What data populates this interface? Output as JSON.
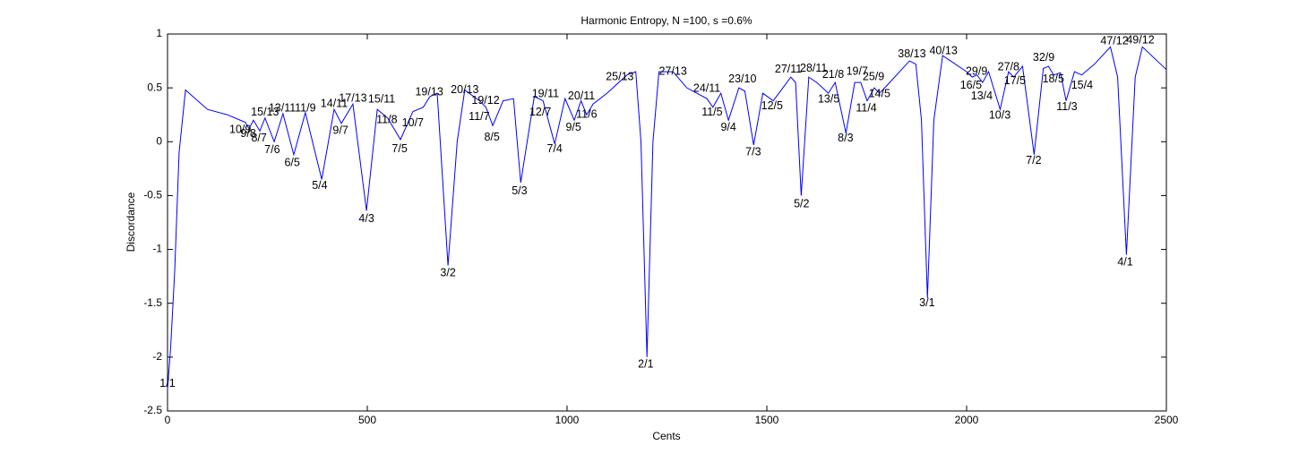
{
  "chart_data": {
    "type": "line",
    "title": "Harmonic Entropy, N =100, s =0.6%",
    "x_label": "Cents",
    "y_label": "Discordance",
    "xlim": [
      0,
      2500
    ],
    "ylim": [
      -2.5,
      1
    ],
    "xticks": [
      0,
      500,
      1000,
      1500,
      2000,
      2500
    ],
    "yticks": [
      -2.5,
      -2,
      -1.5,
      -1,
      -0.5,
      0,
      0.5,
      1
    ],
    "grid": false,
    "series": [
      {
        "color": "#0000ff",
        "x": [
          0,
          8,
          18,
          29,
          45,
          100,
          150,
          182,
          195,
          204,
          215,
          231,
          244,
          267,
          289,
          316,
          345,
          386,
          417,
          435,
          464,
          498,
          525,
          551,
          583,
          614,
          640,
          657,
          675,
          702,
          725,
          744,
          781,
          797,
          814,
          840,
          866,
          884,
          918,
          940,
          969,
          995,
          1018,
          1035,
          1049,
          1065,
          1100,
          1150,
          1172,
          1185,
          1200,
          1215,
          1230,
          1265,
          1300,
          1350,
          1365,
          1385,
          1404,
          1430,
          1445,
          1467,
          1490,
          1516,
          1540,
          1560,
          1572,
          1586,
          1605,
          1625,
          1654,
          1671,
          1698,
          1720,
          1735,
          1751,
          1769,
          1782,
          1800,
          1857,
          1873,
          1887,
          1902,
          1918,
          1940,
          1960,
          2000,
          2014,
          2026,
          2040,
          2055,
          2084,
          2105,
          2118,
          2140,
          2169,
          2192,
          2205,
          2218,
          2235,
          2249,
          2270,
          2288,
          2320,
          2360,
          2378,
          2400,
          2422,
          2440,
          2500
        ],
        "values": [
          -2.3,
          -1.9,
          -1.2,
          -0.1,
          0.48,
          0.3,
          0.25,
          0.2,
          0.18,
          0.12,
          0.2,
          0.1,
          0.22,
          0.0,
          0.26,
          -0.12,
          0.27,
          -0.35,
          0.3,
          0.17,
          0.35,
          -0.64,
          0.3,
          0.22,
          0.02,
          0.28,
          0.32,
          0.42,
          0.45,
          -1.15,
          0.0,
          0.48,
          0.38,
          0.32,
          0.15,
          0.38,
          0.4,
          -0.38,
          0.42,
          0.38,
          -0.02,
          0.4,
          0.2,
          0.38,
          0.25,
          0.35,
          0.45,
          0.62,
          0.65,
          0.0,
          -2.0,
          0.0,
          0.65,
          0.65,
          0.5,
          0.4,
          0.32,
          0.45,
          0.2,
          0.5,
          0.47,
          -0.03,
          0.45,
          0.38,
          0.5,
          0.6,
          0.55,
          -0.5,
          0.6,
          0.55,
          0.45,
          0.55,
          0.08,
          0.55,
          0.55,
          0.38,
          0.5,
          0.45,
          0.52,
          0.75,
          0.72,
          0.2,
          -1.45,
          0.2,
          0.8,
          0.75,
          0.65,
          0.6,
          0.62,
          0.55,
          0.65,
          0.3,
          0.65,
          0.6,
          0.7,
          -0.12,
          0.68,
          0.7,
          0.62,
          0.64,
          0.38,
          0.65,
          0.62,
          0.72,
          0.88,
          0.6,
          -1.05,
          0.6,
          0.88,
          0.67
        ]
      }
    ],
    "annotations": [
      {
        "text": "1/1",
        "x": 0,
        "y": -2.25
      },
      {
        "text": "10/9",
        "x": 182,
        "y": 0.11
      },
      {
        "text": "9/8",
        "x": 202,
        "y": 0.07
      },
      {
        "text": "8/7",
        "x": 229,
        "y": 0.03
      },
      {
        "text": "15/13",
        "x": 244,
        "y": 0.27
      },
      {
        "text": "7/6",
        "x": 262,
        "y": -0.08
      },
      {
        "text": "13/11",
        "x": 287,
        "y": 0.31
      },
      {
        "text": "6/5",
        "x": 312,
        "y": -0.2
      },
      {
        "text": "11/9",
        "x": 345,
        "y": 0.31
      },
      {
        "text": "5/4",
        "x": 381,
        "y": -0.41
      },
      {
        "text": "14/11",
        "x": 417,
        "y": 0.35
      },
      {
        "text": "9/7",
        "x": 433,
        "y": 0.1
      },
      {
        "text": "17/13",
        "x": 464,
        "y": 0.4
      },
      {
        "text": "4/3",
        "x": 498,
        "y": -0.72
      },
      {
        "text": "15/11",
        "x": 536,
        "y": 0.39
      },
      {
        "text": "11/8",
        "x": 549,
        "y": 0.2
      },
      {
        "text": "7/5",
        "x": 581,
        "y": -0.07
      },
      {
        "text": "10/7",
        "x": 614,
        "y": 0.17
      },
      {
        "text": "19/13",
        "x": 655,
        "y": 0.46
      },
      {
        "text": "3/2",
        "x": 702,
        "y": -1.22
      },
      {
        "text": "20/13",
        "x": 744,
        "y": 0.48
      },
      {
        "text": "19/12",
        "x": 796,
        "y": 0.38
      },
      {
        "text": "11/7",
        "x": 780,
        "y": 0.23
      },
      {
        "text": "8/5",
        "x": 812,
        "y": 0.04
      },
      {
        "text": "5/3",
        "x": 881,
        "y": -0.46
      },
      {
        "text": "19/11",
        "x": 946,
        "y": 0.44
      },
      {
        "text": "12/7",
        "x": 933,
        "y": 0.27
      },
      {
        "text": "7/4",
        "x": 969,
        "y": -0.07
      },
      {
        "text": "20/11",
        "x": 1036,
        "y": 0.42
      },
      {
        "text": "9/5",
        "x": 1016,
        "y": 0.13
      },
      {
        "text": "11/6",
        "x": 1049,
        "y": 0.25
      },
      {
        "text": "25/13",
        "x": 1132,
        "y": 0.6
      },
      {
        "text": "2/1",
        "x": 1197,
        "y": -2.07
      },
      {
        "text": "27/13",
        "x": 1265,
        "y": 0.65
      },
      {
        "text": "24/11",
        "x": 1350,
        "y": 0.49
      },
      {
        "text": "11/5",
        "x": 1363,
        "y": 0.27
      },
      {
        "text": "9/4",
        "x": 1404,
        "y": 0.13
      },
      {
        "text": "23/10",
        "x": 1439,
        "y": 0.58
      },
      {
        "text": "7/3",
        "x": 1466,
        "y": -0.1
      },
      {
        "text": "27/11",
        "x": 1554,
        "y": 0.67
      },
      {
        "text": "12/5",
        "x": 1513,
        "y": 0.33
      },
      {
        "text": "28/11",
        "x": 1617,
        "y": 0.68
      },
      {
        "text": "5/2",
        "x": 1587,
        "y": -0.58
      },
      {
        "text": "21/8",
        "x": 1666,
        "y": 0.62
      },
      {
        "text": "13/5",
        "x": 1655,
        "y": 0.39
      },
      {
        "text": "19/7",
        "x": 1726,
        "y": 0.65
      },
      {
        "text": "25/9",
        "x": 1767,
        "y": 0.6
      },
      {
        "text": "8/3",
        "x": 1697,
        "y": 0.03
      },
      {
        "text": "14/5",
        "x": 1782,
        "y": 0.44
      },
      {
        "text": "11/4",
        "x": 1749,
        "y": 0.31
      },
      {
        "text": "38/13",
        "x": 1863,
        "y": 0.81
      },
      {
        "text": "3/1",
        "x": 1901,
        "y": -1.5
      },
      {
        "text": "40/13",
        "x": 1942,
        "y": 0.84
      },
      {
        "text": "29/9",
        "x": 2025,
        "y": 0.65
      },
      {
        "text": "16/5",
        "x": 2011,
        "y": 0.52
      },
      {
        "text": "13/4",
        "x": 2038,
        "y": 0.42
      },
      {
        "text": "27/8",
        "x": 2105,
        "y": 0.69
      },
      {
        "text": "17/5",
        "x": 2121,
        "y": 0.56
      },
      {
        "text": "10/3",
        "x": 2083,
        "y": 0.24
      },
      {
        "text": "32/9",
        "x": 2193,
        "y": 0.78
      },
      {
        "text": "18/5",
        "x": 2217,
        "y": 0.58
      },
      {
        "text": "7/2",
        "x": 2168,
        "y": -0.18
      },
      {
        "text": "11/3",
        "x": 2251,
        "y": 0.32
      },
      {
        "text": "15/4",
        "x": 2289,
        "y": 0.52
      },
      {
        "text": "47/12",
        "x": 2370,
        "y": 0.93
      },
      {
        "text": "49/12",
        "x": 2435,
        "y": 0.94
      },
      {
        "text": "4/1",
        "x": 2397,
        "y": -1.12
      }
    ]
  }
}
